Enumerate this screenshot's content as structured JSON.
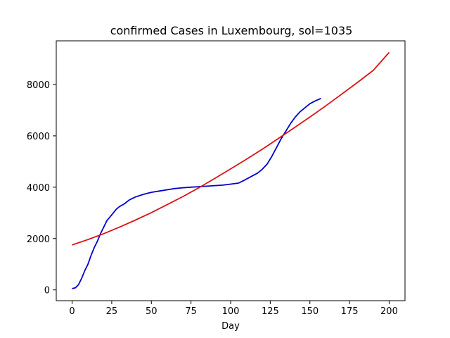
{
  "chart_data": {
    "type": "line",
    "title": "confirmed Cases in Luxembourg, sol=1035",
    "xlabel": "Day",
    "ylabel": "",
    "xlim": [
      -10,
      210
    ],
    "ylim": [
      -420,
      9700
    ],
    "xticks": [
      0,
      25,
      50,
      75,
      100,
      125,
      150,
      175,
      200
    ],
    "yticks": [
      0,
      2000,
      4000,
      6000,
      8000
    ],
    "grid": false,
    "series": [
      {
        "color": "#0000cc",
        "x": [
          0,
          2,
          4,
          6,
          8,
          10,
          12,
          14,
          16,
          18,
          20,
          22,
          24,
          26,
          28,
          30,
          33,
          36,
          40,
          45,
          50,
          55,
          60,
          65,
          70,
          75,
          80,
          85,
          90,
          95,
          100,
          105,
          108,
          111,
          114,
          117,
          120,
          123,
          126,
          129,
          132,
          135,
          138,
          141,
          144,
          147,
          150,
          153,
          157
        ],
        "y": [
          50,
          80,
          200,
          450,
          750,
          1000,
          1350,
          1650,
          1900,
          2200,
          2450,
          2700,
          2850,
          3000,
          3150,
          3250,
          3350,
          3500,
          3620,
          3720,
          3800,
          3850,
          3900,
          3950,
          3980,
          4000,
          4020,
          4040,
          4060,
          4080,
          4120,
          4160,
          4250,
          4350,
          4450,
          4550,
          4700,
          4900,
          5200,
          5550,
          5900,
          6200,
          6500,
          6750,
          6950,
          7100,
          7250,
          7350,
          7460
        ]
      },
      {
        "color": "#dd1111",
        "x": [
          0,
          10,
          20,
          30,
          40,
          50,
          60,
          70,
          80,
          90,
          100,
          110,
          120,
          130,
          140,
          150,
          160,
          170,
          180,
          190,
          200
        ],
        "y": [
          1750,
          1960,
          2190,
          2450,
          2720,
          3010,
          3320,
          3640,
          3980,
          4340,
          4710,
          5090,
          5480,
          5890,
          6310,
          6730,
          7170,
          7620,
          8080,
          8550,
          9250
        ]
      }
    ]
  }
}
